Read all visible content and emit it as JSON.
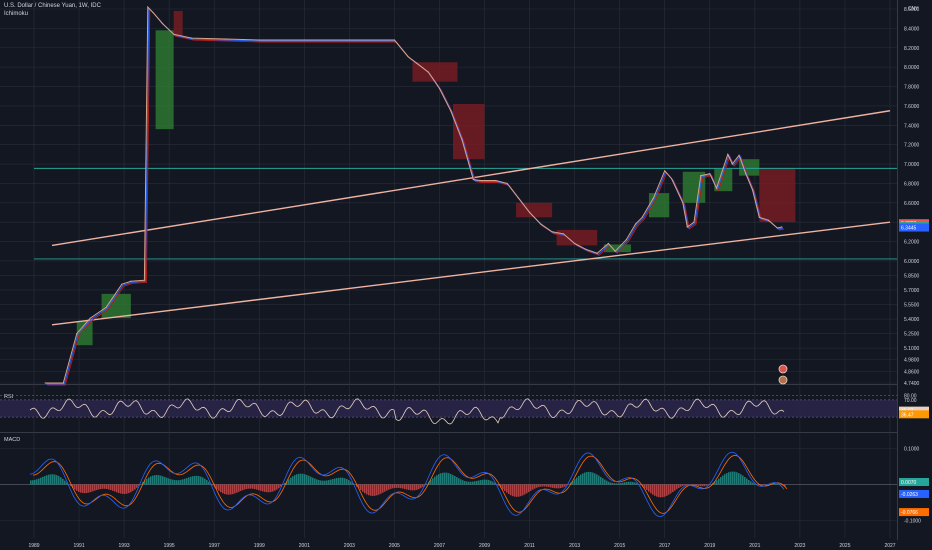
{
  "header": {
    "title": "U.S. Dollar / Chinese Yuan, 1W, IDC",
    "indicator": "Ichimoku"
  },
  "colors": {
    "background": "#131722",
    "grid": "#2a2e39",
    "price_line": "#d6a48a",
    "conversion_line": "#2962ff",
    "base_line": "#b71c1c",
    "cloud_bull": "#2e7d32",
    "cloud_bear": "#7b1d22",
    "channel_line": "#f0b3a2",
    "horizontal_line": "#26a69a",
    "rsi_line": "#e8d1c0",
    "rsi_band": "#2a2548",
    "macd_line": "#2962ff",
    "signal_line": "#ff6d00",
    "hist_pos": "#26a69a",
    "hist_neg": "#ef5350"
  },
  "chart_data": {
    "type": "line",
    "title": "U.S. Dollar / Chinese Yuan, 1W, IDC",
    "currency": "CNY",
    "x_ticks": [
      "1989",
      "1991",
      "1993",
      "1995",
      "1997",
      "1999",
      "2001",
      "2003",
      "2005",
      "2007",
      "2009",
      "2011",
      "2013",
      "2015",
      "2017",
      "2019",
      "2021",
      "2023",
      "2025",
      "2027"
    ],
    "y_ticks": [
      "8.6000",
      "8.4000",
      "8.2000",
      "8.0000",
      "7.8000",
      "7.6000",
      "7.4000",
      "7.2000",
      "7.0000",
      "6.8000",
      "6.6000",
      "6.4000",
      "6.2000",
      "6.0000",
      "5.8500",
      "5.7000",
      "5.5500",
      "5.4000",
      "5.2500",
      "5.1000",
      "4.9800",
      "4.8600",
      "4.7400"
    ],
    "ylim": [
      4.7,
      8.62
    ],
    "series": [
      {
        "name": "",
        "x": [
          1989.5,
          1990.3,
          1990.9,
          1991.5,
          1992.2,
          1992.9,
          1993.3,
          1993.9,
          1994.05,
          1994.3,
          1994.7,
          1995.2,
          1996.0,
          1997.5,
          1999.0,
          2001.0,
          2003.0,
          2005.0,
          2005.6,
          2006.0,
          2006.5,
          2007.0,
          2007.5,
          2008.0,
          2008.5,
          2008.8,
          2009.5,
          2010.0,
          2010.5,
          2011.0,
          2011.5,
          2012.0,
          2012.5,
          2013.0,
          2013.5,
          2014.0,
          2014.5,
          2014.8,
          2015.3,
          2015.7,
          2016.0,
          2016.5,
          2017.0,
          2017.3,
          2017.8,
          2018.0,
          2018.3,
          2018.6,
          2019.0,
          2019.3,
          2019.6,
          2019.8,
          2020.0,
          2020.3,
          2020.6,
          2020.9,
          2021.2,
          2021.6,
          2022.0,
          2022.2
        ],
        "y": [
          4.74,
          4.74,
          5.25,
          5.41,
          5.52,
          5.76,
          5.79,
          5.8,
          8.62,
          8.56,
          8.45,
          8.34,
          8.3,
          8.29,
          8.28,
          8.28,
          8.28,
          8.28,
          8.11,
          8.04,
          7.95,
          7.78,
          7.55,
          7.25,
          6.84,
          6.83,
          6.83,
          6.8,
          6.65,
          6.5,
          6.38,
          6.3,
          6.28,
          6.18,
          6.12,
          6.08,
          6.18,
          6.1,
          6.22,
          6.38,
          6.45,
          6.65,
          6.93,
          6.85,
          6.6,
          6.35,
          6.4,
          6.88,
          6.9,
          6.75,
          6.96,
          7.1,
          7.0,
          7.09,
          6.9,
          6.73,
          6.45,
          6.42,
          6.34,
          6.35
        ]
      }
    ],
    "channel": {
      "upper": {
        "x": [
          1989.8,
          2027.0
        ],
        "y": [
          6.16,
          7.55
        ]
      },
      "lower": {
        "x": [
          1989.8,
          2027.0
        ],
        "y": [
          5.34,
          6.4
        ]
      }
    },
    "horizontal_levels": [
      6.955,
      6.02
    ],
    "price_tags": [
      {
        "label": "6.3893",
        "value": 6.3893,
        "color": "#ef5350"
      },
      {
        "label": "6.3593",
        "value": 6.3593,
        "color": "#26a69a"
      },
      {
        "label": "6.3445",
        "value": 6.3445,
        "color": "#2962ff"
      }
    ],
    "rsi": {
      "name": "RSI",
      "levels": [
        80.0,
        70.0
      ],
      "band": [
        70,
        30
      ],
      "tags": [
        {
          "label": "45.07",
          "value": 45.07,
          "color": "#e8d1c0"
        },
        {
          "label": "36.47",
          "value": 36.47,
          "color": "#ff9800"
        }
      ],
      "ylim": [
        0,
        100
      ]
    },
    "macd": {
      "name": "MACD",
      "levels": [
        0.1,
        -0.1
      ],
      "zero": 0.0,
      "ylim": [
        -0.13,
        0.13
      ],
      "tags": [
        {
          "label": "0.0070",
          "value": 0.007,
          "color": "#26a69a"
        },
        {
          "label": "-0.0263",
          "value": -0.0263,
          "color": "#2962ff"
        },
        {
          "label": "-0.0766",
          "value": -0.0766,
          "color": "#ff6d00"
        }
      ]
    }
  }
}
